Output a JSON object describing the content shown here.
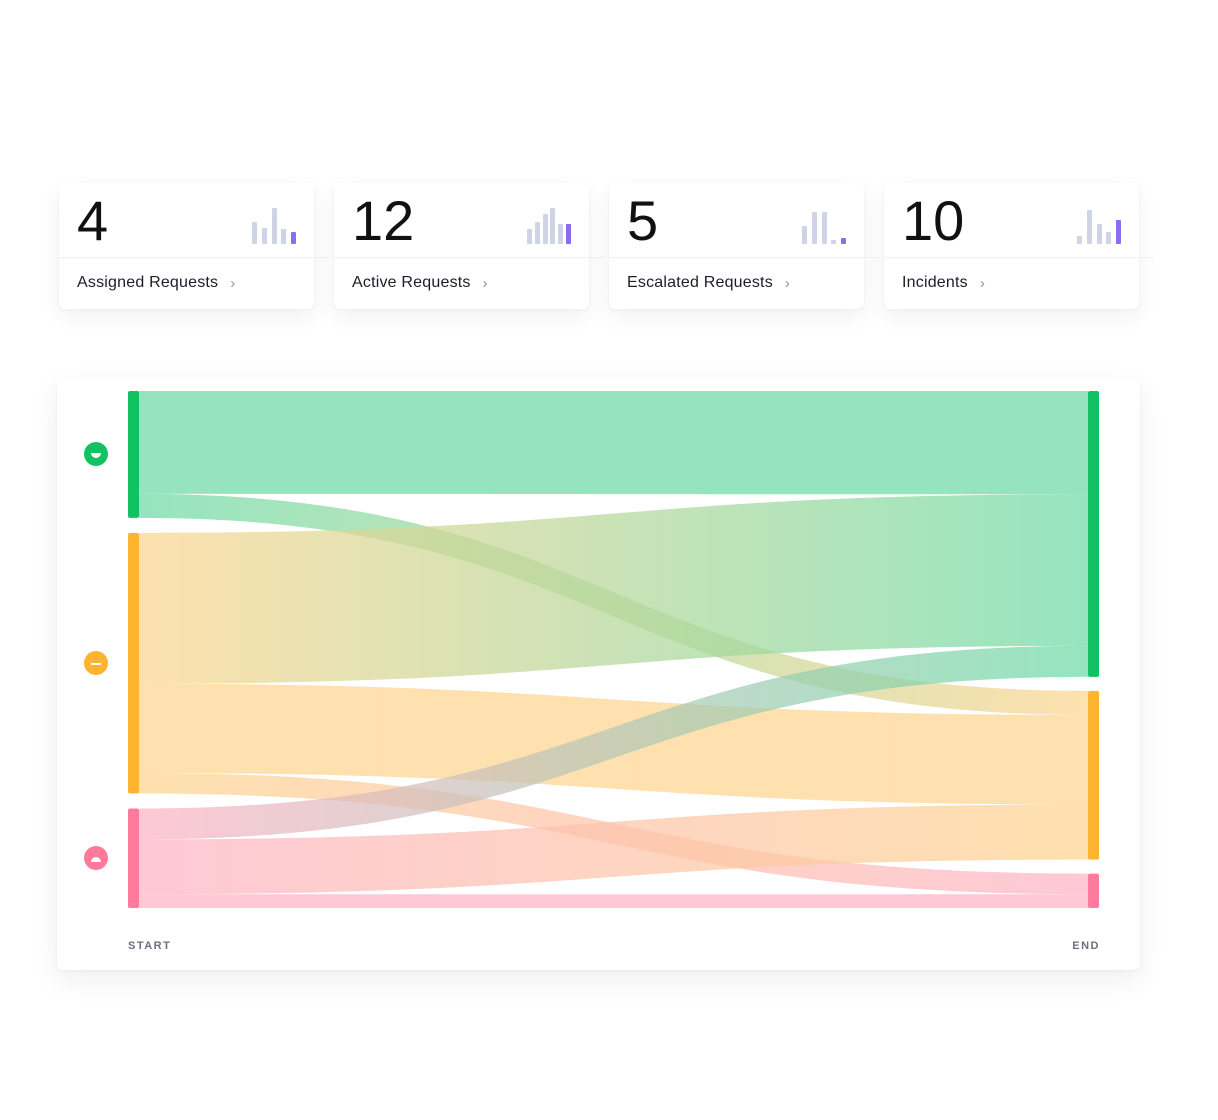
{
  "stats": [
    {
      "value": "4",
      "label": "Assigned Requests",
      "bars": [
        0.62,
        0.45,
        1.0,
        0.42,
        0.32
      ],
      "accent_last": true
    },
    {
      "value": "12",
      "label": "Active Requests",
      "bars": [
        0.42,
        0.62,
        0.84,
        1.0,
        0.56,
        0.56
      ],
      "accent_last": true
    },
    {
      "value": "5",
      "label": "Escalated Requests",
      "bars": [
        0.5,
        0.88,
        0.88,
        0.1,
        0.18
      ],
      "accent_last": true
    },
    {
      "value": "10",
      "label": "Incidents",
      "bars": [
        0.22,
        0.95,
        0.55,
        0.32,
        0.68
      ],
      "accent_last": true
    }
  ],
  "icons": {
    "chevron": "chevron-right-icon",
    "mini_chart": "bar-chart-icon"
  },
  "colors": {
    "bar_muted": "#cfd3e6",
    "bar_accent": "#8b6cf0",
    "positive": "#12c162",
    "neutral": "#fdb431",
    "negative": "#fd7a9c",
    "positive_flow": "#6ddaa6",
    "neutral_flow": "#fdd58f",
    "negative_flow": "#fdb3c6"
  },
  "chart_data": {
    "type": "sankey",
    "x_start_label": "START",
    "x_end_label": "END",
    "start_nodes": [
      {
        "id": "positive",
        "icon": "happy-face-icon",
        "value": 37
      },
      {
        "id": "neutral",
        "icon": "neutral-face-icon",
        "value": 76
      },
      {
        "id": "negative",
        "icon": "sad-face-icon",
        "value": 29
      }
    ],
    "end_nodes": [
      {
        "id": "positive",
        "value": 83
      },
      {
        "id": "neutral",
        "value": 49
      },
      {
        "id": "negative",
        "value": 10
      }
    ],
    "links": [
      {
        "source": "positive",
        "target": "positive",
        "value": 30
      },
      {
        "source": "positive",
        "target": "neutral",
        "value": 7
      },
      {
        "source": "neutral",
        "target": "positive",
        "value": 44
      },
      {
        "source": "neutral",
        "target": "neutral",
        "value": 26
      },
      {
        "source": "neutral",
        "target": "negative",
        "value": 6
      },
      {
        "source": "negative",
        "target": "positive",
        "value": 9
      },
      {
        "source": "negative",
        "target": "neutral",
        "value": 16
      },
      {
        "source": "negative",
        "target": "negative",
        "value": 4
      }
    ]
  }
}
